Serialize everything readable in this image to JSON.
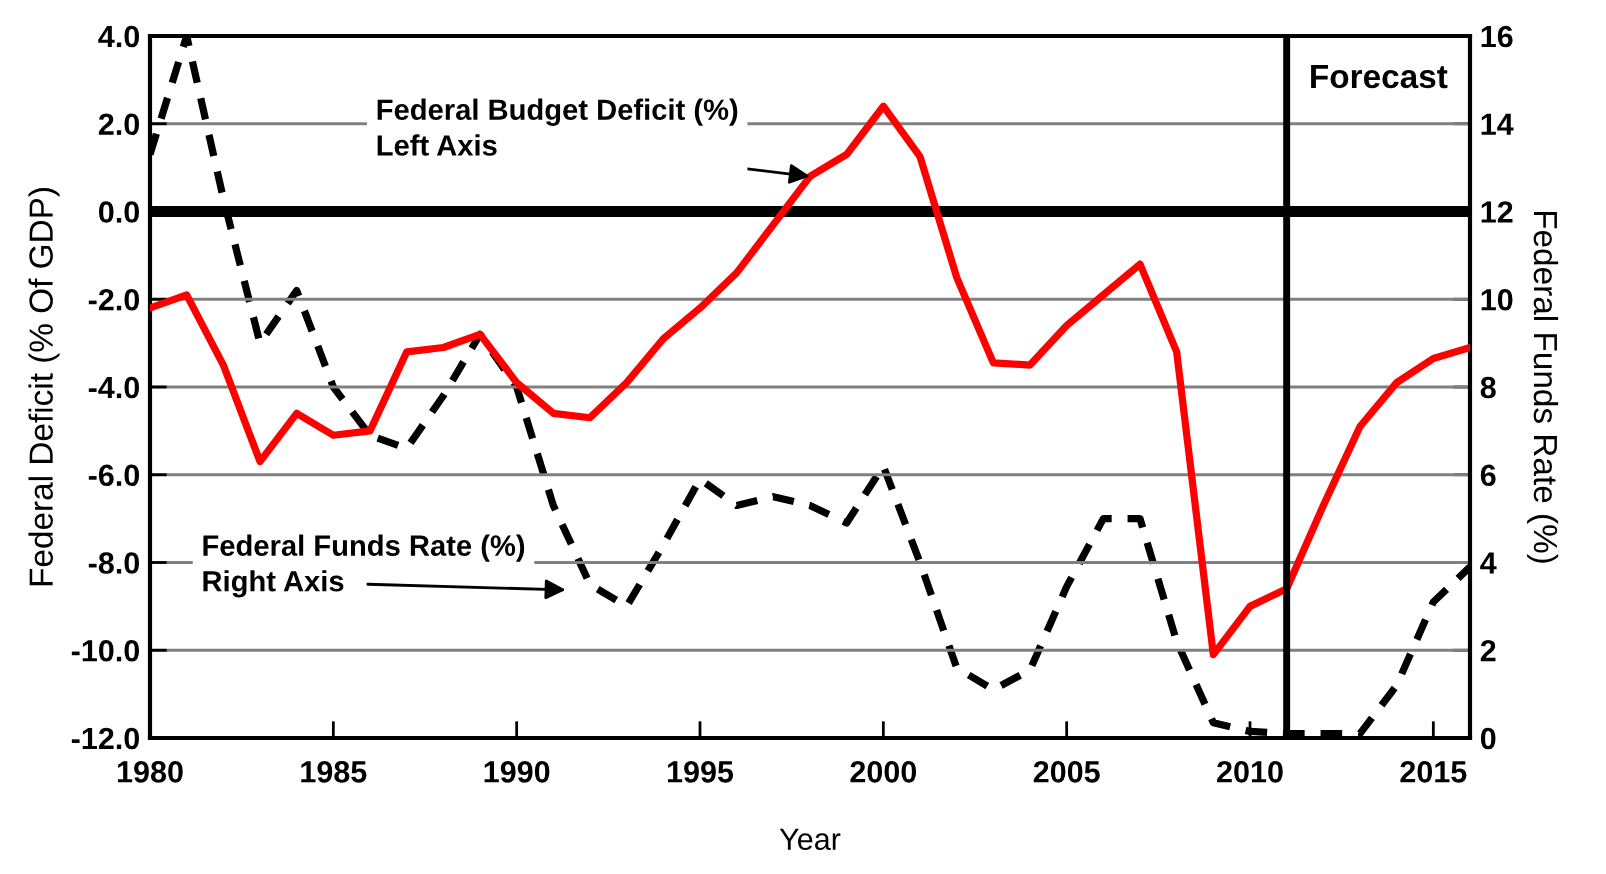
{
  "chart_data": {
    "type": "line",
    "xlabel": "Year",
    "ylabel": "Federal Deficit (% Of GDP)",
    "y2label": "Federal Funds Rate (%)",
    "x": [
      1980,
      1981,
      1982,
      1983,
      1984,
      1985,
      1986,
      1987,
      1988,
      1989,
      1990,
      1991,
      1992,
      1993,
      1994,
      1995,
      1996,
      1997,
      1998,
      1999,
      2000,
      2001,
      2002,
      2003,
      2004,
      2005,
      2006,
      2007,
      2008,
      2009,
      2010,
      2011,
      2012,
      2013,
      2014,
      2015,
      2016
    ],
    "series": [
      {
        "color": "#ff0000",
        "line_style": "solid",
        "values": [
          -2.2,
          -1.9,
          -3.5,
          -5.7,
          -4.6,
          -5.1,
          -5.0,
          -3.2,
          -3.1,
          -2.8,
          -3.9,
          -4.6,
          -4.7,
          -3.9,
          -2.9,
          -2.2,
          -1.4,
          -0.3,
          0.8,
          1.3,
          2.4,
          1.25,
          -1.5,
          -3.45,
          -3.5,
          -2.6,
          -1.9,
          -1.2,
          -3.2,
          -10.1,
          -9.0,
          -8.6,
          -6.7,
          -4.9,
          -3.9,
          -3.35,
          -3.1
        ]
      },
      {
        "color": "#000000",
        "line_style": "dashed",
        "axis": "y2",
        "values": [
          13.3,
          16.0,
          12.3,
          9.0,
          10.2,
          8.0,
          6.9,
          6.6,
          7.8,
          9.2,
          8.0,
          5.3,
          3.5,
          3.0,
          4.4,
          5.9,
          5.3,
          5.5,
          5.3,
          4.9,
          6.2,
          4.0,
          1.6,
          1.1,
          1.55,
          3.45,
          5.0,
          5.0,
          2.2,
          0.35,
          0.15,
          0.1,
          0.1,
          0.1,
          1.2,
          3.1,
          3.9
        ]
      }
    ],
    "xlim": [
      1980,
      2016
    ],
    "xticks": [
      1980,
      1985,
      1990,
      1995,
      2000,
      2005,
      2010,
      2015
    ],
    "ylim": [
      -12,
      4
    ],
    "yticks": [
      {
        "value": -12,
        "label": "-12.0"
      },
      {
        "value": -10,
        "label": "-10.0"
      },
      {
        "value": -8,
        "label": "-8.0"
      },
      {
        "value": -6,
        "label": "-6.0"
      },
      {
        "value": -4,
        "label": "-4.0"
      },
      {
        "value": -2,
        "label": "-2.0"
      },
      {
        "value": 0,
        "label": "0.0"
      },
      {
        "value": 2,
        "label": "2.0"
      },
      {
        "value": 4,
        "label": "4.0"
      }
    ],
    "y2lim": [
      0,
      16
    ],
    "y2ticks": [
      0,
      2,
      4,
      6,
      8,
      10,
      12,
      14,
      16
    ],
    "grid": "y",
    "legend": false,
    "marker": "none",
    "ref_lines": [
      {
        "axis": "y",
        "value": 0,
        "color": "#000000"
      },
      {
        "axis": "x",
        "value": 2011,
        "label": "Forecast",
        "color": "#000000"
      }
    ],
    "annotations": [
      {
        "text": "Federal Budget Deficit (%)\nLeft Axis",
        "x": 1998,
        "y": 0.8
      },
      "Federal Funds Rate (%)\nRight Axis"
    ]
  }
}
